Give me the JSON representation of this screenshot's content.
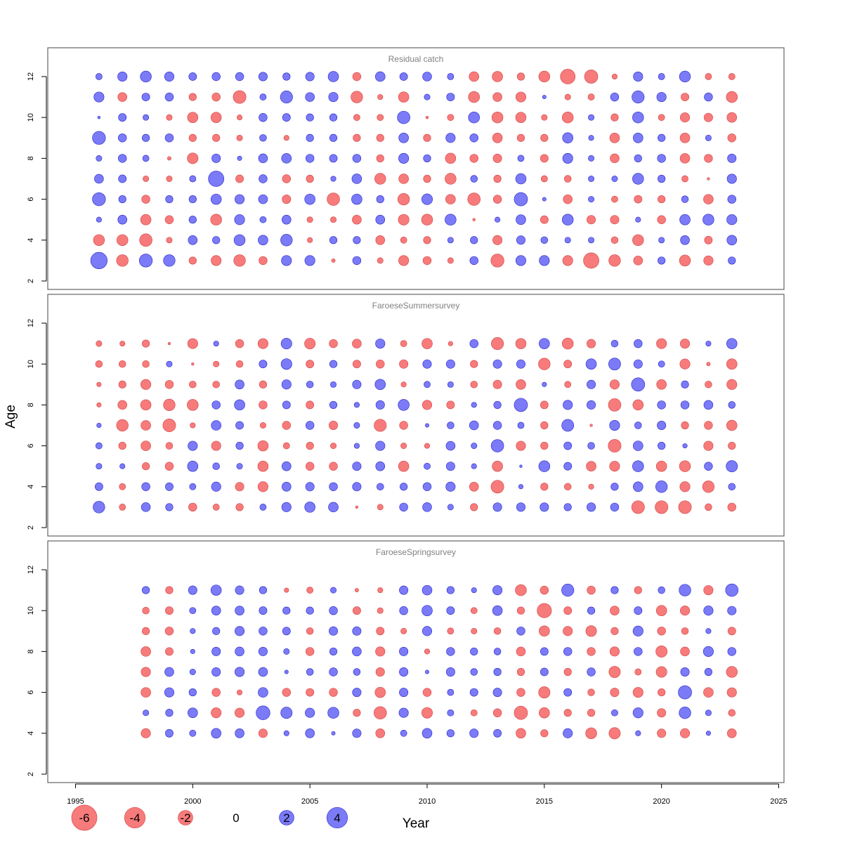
{
  "chart_data": {
    "type": "bubble",
    "xlabel": "Year",
    "ylabel": "Age",
    "xlim": [
      1995,
      2025
    ],
    "ylim": [
      2,
      12
    ],
    "x_ticks": [
      1995,
      2000,
      2005,
      2010,
      2015,
      2020,
      2025
    ],
    "y_ticks": [
      2,
      4,
      6,
      8,
      10,
      12
    ],
    "colors": {
      "positive": "#7b7bf7",
      "negative": "#f77b7b",
      "positive_edge": "#2323c8",
      "negative_edge": "#d24040"
    },
    "legend": {
      "values": [
        -6,
        -4,
        -2,
        0,
        2,
        4
      ],
      "labels": [
        "-6",
        "-4",
        "-2",
        "0",
        "2",
        "4"
      ]
    },
    "panels": [
      {
        "title": "Residual catch",
        "years": [
          1996,
          1997,
          1998,
          1999,
          2000,
          2001,
          2002,
          2003,
          2004,
          2005,
          2006,
          2007,
          2008,
          2009,
          2010,
          2011,
          2012,
          2013,
          2014,
          2015,
          2016,
          2017,
          2018,
          2019,
          2020,
          2021,
          2022,
          2023
        ],
        "ages": [
          3,
          4,
          5,
          6,
          7,
          8,
          9,
          10,
          11,
          12
        ],
        "residuals": [
          [
            4.0,
            -2.0,
            2.5,
            2.0,
            -0.8,
            -1.5,
            -2.0,
            -1.0,
            1.5,
            1.5,
            -0.2,
            1.0,
            -0.5,
            -1.5,
            -1.0,
            -0.5,
            1.0,
            -2.5,
            1.5,
            1.5,
            -1.5,
            -3.5,
            -2.0,
            -1.2,
            0.8,
            -1.8,
            -1.3,
            0.8
          ],
          [
            -1.8,
            -1.8,
            -2.3,
            -0.5,
            1.2,
            0.8,
            1.8,
            1.4,
            2.0,
            -0.4,
            0.8,
            0.8,
            -1.2,
            -0.6,
            -0.8,
            0.5,
            0.8,
            -1.3,
            1.1,
            0.7,
            0.5,
            0.5,
            -0.7,
            -1.8,
            0.5,
            1.2,
            -0.9,
            1.4
          ],
          [
            0.4,
            1.2,
            -1.6,
            -1.0,
            0.8,
            -1.8,
            1.5,
            0.6,
            1.2,
            -0.5,
            -0.5,
            -1.2,
            1.2,
            -1.7,
            -1.8,
            1.8,
            -0.1,
            0.4,
            1.4,
            -0.9,
            1.8,
            -1.1,
            -1.1,
            0.4,
            -1.0,
            1.6,
            1.8,
            1.5
          ],
          [
            2.5,
            0.8,
            -1.0,
            0.8,
            0.8,
            1.6,
            1.3,
            1.2,
            -1.1,
            1.6,
            -2.3,
            1.6,
            0.8,
            -2.0,
            1.7,
            -1.4,
            -2.3,
            -1.0,
            2.6,
            0.2,
            -1.2,
            0.5,
            -0.6,
            -0.9,
            -0.8,
            0.7,
            -1.4,
            1.0
          ],
          [
            1.2,
            0.9,
            -0.5,
            -0.5,
            0.6,
            3.5,
            -0.9,
            1.0,
            -1.0,
            -0.8,
            0.4,
            1.4,
            -1.8,
            -1.4,
            -0.8,
            -1.8,
            0.7,
            -0.8,
            1.6,
            -0.6,
            -0.7,
            0.5,
            0.5,
            1.8,
            0.8,
            -0.6,
            -0.1,
            1.3
          ],
          [
            0.5,
            1.0,
            0.6,
            -0.2,
            -1.7,
            1.1,
            0.3,
            1.2,
            1.4,
            1.0,
            0.9,
            1.0,
            -0.8,
            1.5,
            0.8,
            -1.6,
            -1.0,
            -1.1,
            0.6,
            -0.9,
            1.5,
            0.5,
            -1.2,
            0.8,
            1.0,
            -1.4,
            -1.0,
            1.1
          ],
          [
            2.5,
            1.0,
            0.8,
            1.0,
            -0.8,
            -0.8,
            -0.5,
            0.7,
            -0.4,
            0.8,
            0.8,
            -0.8,
            -0.8,
            1.4,
            -0.8,
            1.3,
            1.0,
            -1.4,
            -0.8,
            -0.8,
            1.6,
            0.4,
            -1.4,
            1.4,
            0.8,
            -1.4,
            0.5,
            -1.0
          ],
          [
            0.1,
            0.9,
            0.5,
            -0.5,
            -1.6,
            -1.6,
            -0.4,
            1.0,
            0.9,
            0.8,
            0.8,
            -0.6,
            -0.6,
            2.3,
            -0.1,
            -0.6,
            1.8,
            -1.8,
            -1.6,
            -0.5,
            -1.8,
            0.5,
            -0.8,
            1.8,
            -0.6,
            -1.3,
            -1.1,
            -1.4
          ],
          [
            1.5,
            -1.2,
            0.9,
            1.0,
            -0.8,
            -1.0,
            -2.4,
            0.6,
            2.2,
            1.2,
            1.3,
            -2.0,
            -0.4,
            -1.6,
            0.5,
            0.9,
            -1.8,
            -1.2,
            -1.5,
            0.2,
            -0.5,
            -0.6,
            1.0,
            2.2,
            1.3,
            -0.9,
            1.0,
            -1.8
          ],
          [
            0.6,
            1.3,
            1.8,
            1.3,
            0.9,
            1.0,
            1.0,
            1.1,
            0.8,
            1.1,
            1.6,
            -1.0,
            1.4,
            0.9,
            1.2,
            0.6,
            -1.4,
            -1.6,
            -0.8,
            -1.8,
            -3.2,
            -2.6,
            -0.4,
            1.3,
            0.6,
            1.8,
            -0.6,
            -0.6
          ]
        ]
      },
      {
        "title": "FaroeseSummersurvey",
        "years": [
          1996,
          1997,
          1998,
          1999,
          2000,
          2001,
          2002,
          2003,
          2004,
          2005,
          2006,
          2007,
          2008,
          2009,
          2010,
          2011,
          2012,
          2013,
          2014,
          2015,
          2016,
          2017,
          2018,
          2019,
          2020,
          2021,
          2022,
          2023
        ],
        "ages": [
          3,
          4,
          5,
          6,
          7,
          8,
          9,
          10,
          11
        ],
        "residuals": [
          [
            2.0,
            -0.6,
            1.2,
            0.8,
            -1.0,
            -0.6,
            -0.8,
            0.6,
            1.3,
            1.6,
            1.4,
            -0.1,
            -0.5,
            1.0,
            1.2,
            0.5,
            -0.8,
            1.1,
            1.1,
            1.1,
            0.8,
            1.1,
            1.0,
            -2.4,
            -2.4,
            -2.4,
            -0.7,
            -1.0
          ],
          [
            0.9,
            -0.6,
            1.0,
            0.9,
            0.6,
            1.3,
            -1.1,
            -1.5,
            1.2,
            1.1,
            1.0,
            1.1,
            0.7,
            0.8,
            1.0,
            1.3,
            -1.2,
            -2.4,
            0.3,
            -0.8,
            -0.7,
            -0.4,
            0.8,
            1.4,
            2.0,
            -1.5,
            -2.0,
            0.7
          ],
          [
            0.5,
            0.4,
            -0.8,
            -1.0,
            1.6,
            0.7,
            0.5,
            -1.6,
            1.2,
            -1.0,
            -1.0,
            1.1,
            1.2,
            -1.6,
            0.6,
            1.1,
            0.4,
            -1.6,
            0.1,
            1.8,
            0.9,
            -1.4,
            -1.5,
            1.8,
            -1.6,
            -1.8,
            1.0,
            1.9
          ],
          [
            0.6,
            -0.8,
            -1.4,
            -0.7,
            1.3,
            -1.3,
            0.8,
            -1.6,
            -0.6,
            -0.8,
            -0.5,
            0.4,
            1.3,
            -0.5,
            -0.4,
            1.2,
            0.5,
            2.3,
            -1.3,
            -0.8,
            0.9,
            0.7,
            -2.4,
            1.4,
            0.8,
            0.3,
            -1.3,
            -0.8
          ],
          [
            0.3,
            -2.0,
            -1.4,
            -2.4,
            -0.4,
            1.4,
            0.9,
            -0.5,
            -1.0,
            1.0,
            -1.1,
            0.5,
            -2.2,
            -1.0,
            0.2,
            0.7,
            1.2,
            1.0,
            0.6,
            -0.8,
            2.1,
            -0.1,
            1.5,
            0.7,
            1.1,
            -0.8,
            -1.0,
            -1.6
          ],
          [
            -0.3,
            -1.2,
            -1.6,
            -2.0,
            -1.8,
            1.0,
            1.6,
            -1.0,
            0.9,
            -0.9,
            0.8,
            0.4,
            1.1,
            1.8,
            -1.3,
            -0.9,
            0.4,
            0.8,
            2.6,
            -0.9,
            1.3,
            1.1,
            -2.3,
            -1.6,
            1.0,
            1.0,
            1.2,
            0.7
          ],
          [
            -0.3,
            -0.8,
            -1.5,
            -1.0,
            -0.7,
            -0.7,
            1.2,
            -0.8,
            1.3,
            0.7,
            0.5,
            1.1,
            1.6,
            -0.4,
            0.6,
            0.5,
            -0.7,
            -1.1,
            -1.4,
            0.3,
            -0.6,
            1.1,
            -1.3,
            2.6,
            -1.4,
            0.8,
            -0.7,
            -1.5
          ],
          [
            -0.7,
            -0.7,
            -0.7,
            0.5,
            -0.1,
            -0.5,
            -0.7,
            0.9,
            1.7,
            -0.9,
            0.8,
            -0.9,
            -1.0,
            -1.1,
            1.1,
            1.1,
            -0.8,
            1.1,
            1.1,
            -2.0,
            -0.9,
            1.6,
            2.1,
            1.1,
            0.6,
            -1.5,
            -0.2,
            -1.6
          ],
          [
            -0.5,
            -0.4,
            -0.8,
            -0.1,
            -1.5,
            0.4,
            -1.0,
            -1.5,
            1.7,
            -1.7,
            -1.0,
            -1.2,
            1.3,
            -0.6,
            -1.6,
            -0.3,
            1.0,
            -2.2,
            -1.6,
            1.6,
            -1.8,
            -1.1,
            0.7,
            1.0,
            -1.5,
            -1.3,
            0.4,
            1.6
          ]
        ]
      },
      {
        "title": "FaroeseSpringsurvey",
        "years": [
          1998,
          1999,
          2000,
          2001,
          2002,
          2003,
          2004,
          2005,
          2006,
          2007,
          2008,
          2009,
          2010,
          2011,
          2012,
          2013,
          2014,
          2015,
          2016,
          2017,
          2018,
          2019,
          2020,
          2021,
          2022,
          2023
        ],
        "ages": [
          4,
          5,
          6,
          7,
          8,
          9,
          10,
          11
        ],
        "residuals": [
          [
            -1.3,
            0.9,
            0.6,
            1.4,
            1.2,
            -1.1,
            0.4,
            1.2,
            0.2,
            1.1,
            -1.2,
            0.6,
            1.4,
            0.8,
            1.1,
            0.9,
            -1.4,
            -0.8,
            1.3,
            -1.8,
            -1.9,
            0.4,
            -1.1,
            -1.3,
            0.3,
            -1.2
          ],
          [
            0.5,
            0.8,
            1.4,
            -1.5,
            -1.3,
            2.8,
            1.9,
            1.3,
            1.8,
            -0.8,
            -2.3,
            1.3,
            -1.7,
            0.6,
            -0.6,
            -1.0,
            -2.6,
            -1.6,
            -0.8,
            -0.8,
            0.6,
            1.5,
            -1.1,
            2.0,
            0.5,
            -0.7
          ],
          [
            -1.4,
            1.3,
            0.8,
            -1.0,
            -0.4,
            1.4,
            -1.0,
            -0.9,
            -1.0,
            1.1,
            -1.6,
            1.1,
            -1.0,
            0.6,
            0.9,
            1.1,
            -1.0,
            -1.9,
            0.9,
            -0.7,
            -1.1,
            -1.5,
            -0.8,
            2.6,
            -1.4,
            -1.3
          ],
          [
            -1.3,
            1.2,
            0.5,
            1.1,
            1.3,
            1.2,
            0.2,
            0.7,
            1.0,
            0.7,
            -1.1,
            1.1,
            0.2,
            1.1,
            0.7,
            0.8,
            -0.8,
            0.9,
            -0.8,
            1.0,
            -1.9,
            -0.6,
            -1.7,
            1.1,
            0.8,
            -1.8
          ],
          [
            -1.4,
            -0.9,
            0.3,
            1.1,
            1.2,
            1.1,
            0.5,
            -1.0,
            0.8,
            1.2,
            -1.3,
            1.1,
            -0.4,
            1.0,
            0.8,
            0.7,
            -1.2,
            0.9,
            1.0,
            -1.0,
            -1.3,
            1.0,
            -1.9,
            -1.2,
            1.5,
            1.0
          ],
          [
            -0.8,
            -1.0,
            0.4,
            0.8,
            1.3,
            1.0,
            0.9,
            -0.7,
            1.1,
            1.1,
            -0.9,
            -0.5,
            1.3,
            -0.6,
            -0.5,
            -0.7,
            1.0,
            -1.6,
            -1.3,
            -1.7,
            -0.8,
            1.5,
            -1.0,
            -0.7,
            0.4,
            -0.9
          ],
          [
            -0.7,
            -0.9,
            0.6,
            1.2,
            1.2,
            0.9,
            0.8,
            0.8,
            1.0,
            -0.9,
            -0.5,
            1.0,
            1.6,
            0.9,
            -0.6,
            1.4,
            -0.8,
            -3.0,
            -0.9,
            0.8,
            -1.2,
            0.9,
            -1.6,
            -1.3,
            1.3,
            1.1
          ],
          [
            0.8,
            -0.8,
            1.1,
            1.6,
            1.1,
            0.8,
            -0.3,
            -0.6,
            0.5,
            -0.2,
            -0.4,
            1.1,
            1.4,
            0.8,
            0.4,
            1.3,
            -1.8,
            -1.0,
            2.2,
            -1.0,
            0.8,
            -0.8,
            0.7,
            2.0,
            -1.3,
            2.3
          ]
        ]
      }
    ]
  }
}
